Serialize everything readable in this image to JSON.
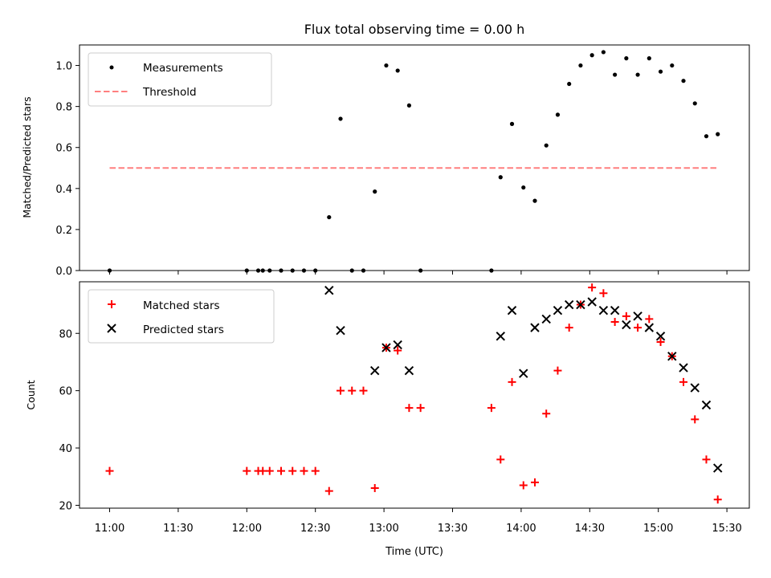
{
  "chart_data": [
    {
      "type": "scatter",
      "title": "Flux total observing time = 0.00 h",
      "xlabel": "",
      "ylabel": "Matched/Predicted stars",
      "ylim": [
        0.0,
        1.1
      ],
      "yticks": [
        0.0,
        0.2,
        0.4,
        0.6,
        0.8,
        1.0
      ],
      "ytick_labels": [
        "0.0",
        "0.2",
        "0.4",
        "0.6",
        "0.8",
        "1.0"
      ],
      "grid": false,
      "legend_position": "upper-left",
      "series": [
        {
          "name": "Measurements",
          "kind": "scatter",
          "marker": "dot",
          "color": "#000000",
          "points": [
            [
              "11:00",
              0.0
            ],
            [
              "12:00",
              0.0
            ],
            [
              "12:05",
              0.0
            ],
            [
              "12:07",
              0.0
            ],
            [
              "12:10",
              0.0
            ],
            [
              "12:15",
              0.0
            ],
            [
              "12:20",
              0.0
            ],
            [
              "12:25",
              0.0
            ],
            [
              "12:30",
              0.0
            ],
            [
              "12:36",
              0.26
            ],
            [
              "12:41",
              0.74
            ],
            [
              "12:46",
              0.0
            ],
            [
              "12:51",
              0.0
            ],
            [
              "12:56",
              0.385
            ],
            [
              "13:01",
              1.0
            ],
            [
              "13:06",
              0.975
            ],
            [
              "13:11",
              0.805
            ],
            [
              "13:16",
              0.0
            ],
            [
              "13:47",
              0.0
            ],
            [
              "13:51",
              0.455
            ],
            [
              "13:56",
              0.715
            ],
            [
              "14:01",
              0.405
            ],
            [
              "14:06",
              0.34
            ],
            [
              "14:11",
              0.61
            ],
            [
              "14:16",
              0.76
            ],
            [
              "14:21",
              0.91
            ],
            [
              "14:26",
              1.0
            ],
            [
              "14:31",
              1.05
            ],
            [
              "14:36",
              1.065
            ],
            [
              "14:41",
              0.955
            ],
            [
              "14:46",
              1.035
            ],
            [
              "14:51",
              0.955
            ],
            [
              "14:56",
              1.035
            ],
            [
              "15:01",
              0.97
            ],
            [
              "15:06",
              1.0
            ],
            [
              "15:11",
              0.925
            ],
            [
              "15:16",
              0.815
            ],
            [
              "15:21",
              0.655
            ],
            [
              "15:26",
              0.665
            ]
          ]
        },
        {
          "name": "Threshold",
          "kind": "line",
          "dash": true,
          "color": "#ff7f7f",
          "points": [
            [
              "11:00",
              0.5
            ],
            [
              "15:26",
              0.5
            ]
          ]
        }
      ]
    },
    {
      "type": "scatter",
      "title": "",
      "xlabel": "Time (UTC)",
      "ylabel": "Count",
      "ylim": [
        19,
        98
      ],
      "yticks": [
        20,
        40,
        60,
        80
      ],
      "ytick_labels": [
        "20",
        "40",
        "60",
        "80"
      ],
      "xticks": [
        "11:00",
        "11:30",
        "12:00",
        "12:30",
        "13:00",
        "13:30",
        "14:00",
        "14:30",
        "15:00",
        "15:30"
      ],
      "grid": false,
      "legend_position": "upper-left",
      "series": [
        {
          "name": "Matched stars",
          "kind": "scatter",
          "marker": "plus",
          "color": "#ff0000",
          "points": [
            [
              "11:00",
              32
            ],
            [
              "12:00",
              32
            ],
            [
              "12:05",
              32
            ],
            [
              "12:07",
              32
            ],
            [
              "12:10",
              32
            ],
            [
              "12:15",
              32
            ],
            [
              "12:20",
              32
            ],
            [
              "12:25",
              32
            ],
            [
              "12:30",
              32
            ],
            [
              "12:36",
              25
            ],
            [
              "12:41",
              60
            ],
            [
              "12:46",
              60
            ],
            [
              "12:51",
              60
            ],
            [
              "12:56",
              26
            ],
            [
              "13:01",
              75
            ],
            [
              "13:06",
              74
            ],
            [
              "13:11",
              54
            ],
            [
              "13:16",
              54
            ],
            [
              "13:47",
              54
            ],
            [
              "13:51",
              36
            ],
            [
              "13:56",
              63
            ],
            [
              "14:01",
              27
            ],
            [
              "14:06",
              28
            ],
            [
              "14:11",
              52
            ],
            [
              "14:16",
              67
            ],
            [
              "14:21",
              82
            ],
            [
              "14:26",
              90
            ],
            [
              "14:31",
              96
            ],
            [
              "14:36",
              94
            ],
            [
              "14:41",
              84
            ],
            [
              "14:46",
              86
            ],
            [
              "14:51",
              82
            ],
            [
              "14:56",
              85
            ],
            [
              "15:01",
              77
            ],
            [
              "15:06",
              72
            ],
            [
              "15:11",
              63
            ],
            [
              "15:16",
              50
            ],
            [
              "15:21",
              36
            ],
            [
              "15:26",
              22
            ]
          ]
        },
        {
          "name": "Predicted stars",
          "kind": "scatter",
          "marker": "x",
          "color": "#000000",
          "points": [
            [
              "12:36",
              95
            ],
            [
              "12:41",
              81
            ],
            [
              "12:56",
              67
            ],
            [
              "13:01",
              75
            ],
            [
              "13:06",
              76
            ],
            [
              "13:11",
              67
            ],
            [
              "13:51",
              79
            ],
            [
              "13:56",
              88
            ],
            [
              "14:01",
              66
            ],
            [
              "14:06",
              82
            ],
            [
              "14:11",
              85
            ],
            [
              "14:16",
              88
            ],
            [
              "14:21",
              90
            ],
            [
              "14:26",
              90
            ],
            [
              "14:31",
              91
            ],
            [
              "14:36",
              88
            ],
            [
              "14:41",
              88
            ],
            [
              "14:46",
              83
            ],
            [
              "14:51",
              86
            ],
            [
              "14:56",
              82
            ],
            [
              "15:01",
              79
            ],
            [
              "15:06",
              72
            ],
            [
              "15:11",
              68
            ],
            [
              "15:16",
              61
            ],
            [
              "15:21",
              55
            ],
            [
              "15:26",
              33
            ]
          ]
        }
      ]
    }
  ]
}
